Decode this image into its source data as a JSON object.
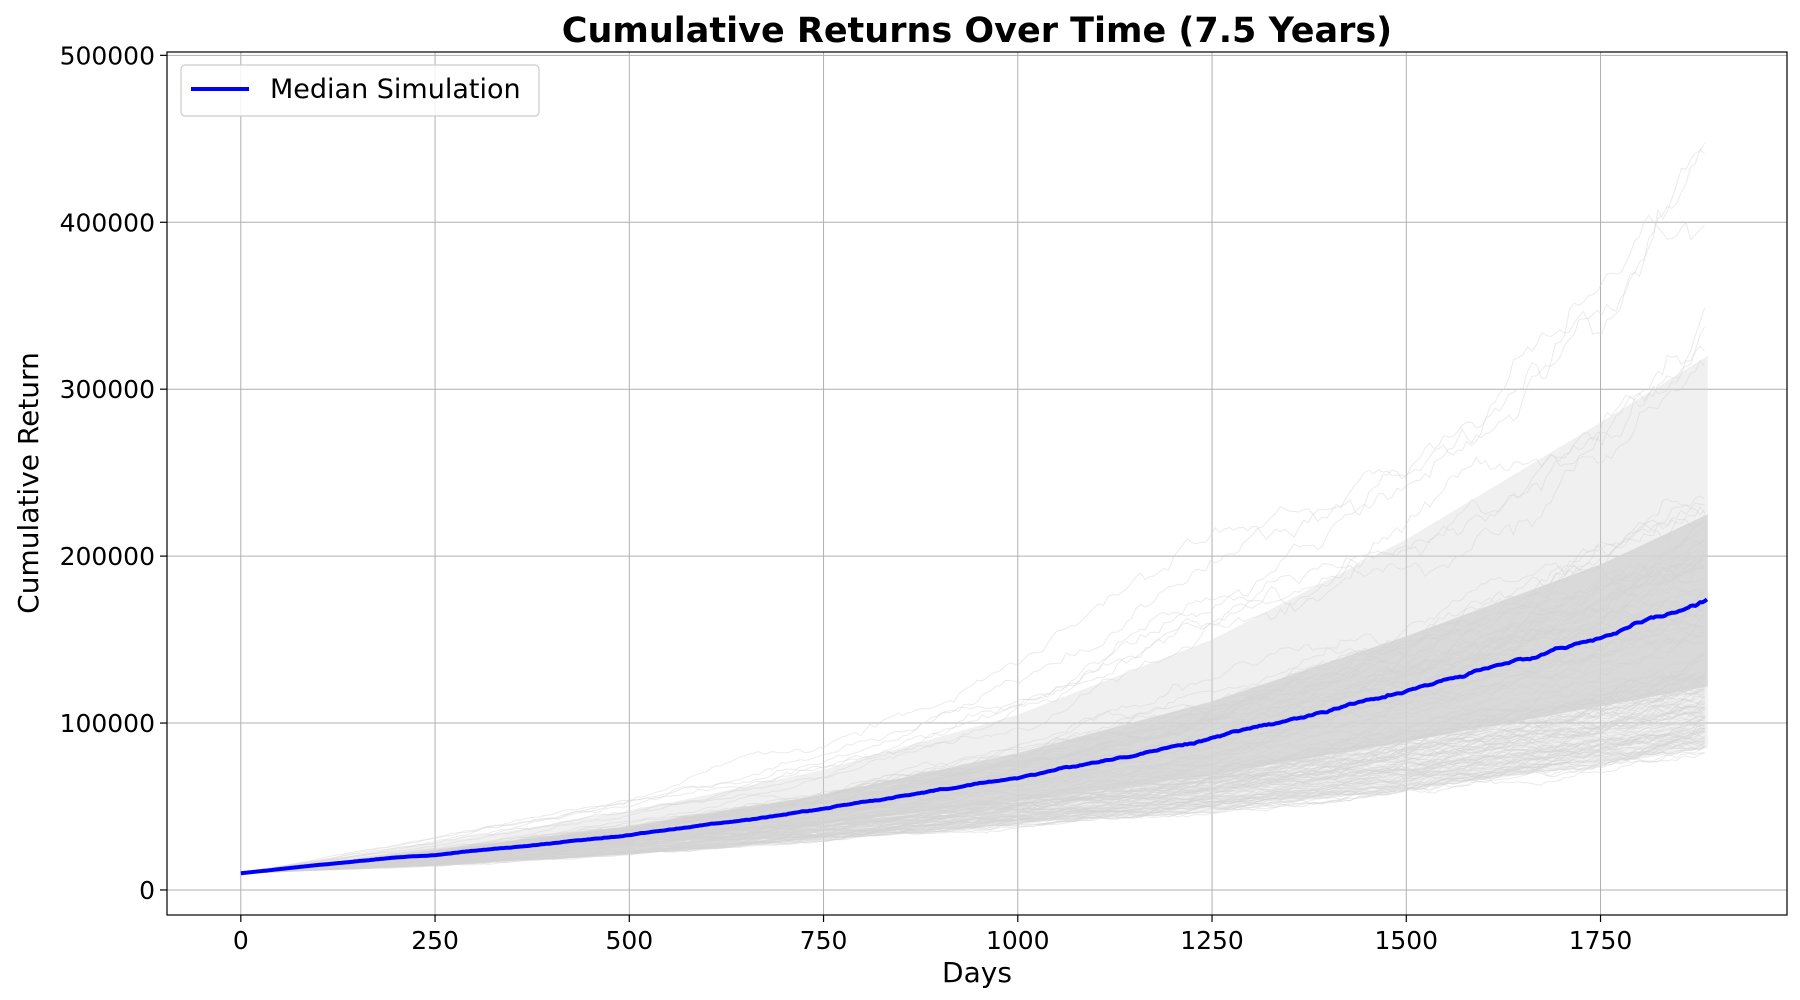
{
  "chart_data": {
    "type": "line",
    "title": "Cumulative Returns Over Time (7.5 Years)",
    "xlabel": "Days",
    "ylabel": "Cumulative Return",
    "xlim": [
      -95,
      1990
    ],
    "ylim": [
      -15000,
      502000
    ],
    "x_ticks": [
      0,
      250,
      500,
      750,
      1000,
      1250,
      1500,
      1750
    ],
    "y_ticks": [
      0,
      100000,
      200000,
      300000,
      400000,
      500000
    ],
    "grid": true,
    "legend_position": "top-left",
    "colors": {
      "median": "#0000ff",
      "simulations": "#d3d3d3"
    },
    "series": [
      {
        "name": "Median Simulation",
        "x": [
          0,
          100,
          200,
          250,
          300,
          400,
          500,
          600,
          700,
          750,
          800,
          900,
          1000,
          1100,
          1200,
          1250,
          1300,
          1400,
          1500,
          1600,
          1700,
          1750,
          1800,
          1888
        ],
        "y": [
          10000,
          15000,
          19500,
          21000,
          23500,
          28000,
          33000,
          39000,
          45500,
          49000,
          52500,
          59500,
          67500,
          76500,
          86000,
          91000,
          96500,
          107500,
          119000,
          131000,
          145000,
          152000,
          159000,
          173000
        ]
      }
    ],
    "simulation_envelope": {
      "x": [
        0,
        250,
        500,
        750,
        1000,
        1250,
        1500,
        1750,
        1888
      ],
      "p5": [
        10000,
        15000,
        22000,
        31000,
        40000,
        48000,
        60000,
        75000,
        85000
      ],
      "p25": [
        10000,
        18500,
        28500,
        40000,
        53000,
        69000,
        89000,
        110000,
        122000
      ],
      "p75": [
        10000,
        24000,
        38000,
        57000,
        82000,
        113000,
        152000,
        195000,
        225000
      ],
      "p95": [
        10000,
        28000,
        47000,
        72000,
        105000,
        150000,
        210000,
        280000,
        320000
      ],
      "max": [
        10000,
        32000,
        57000,
        88000,
        138000,
        215000,
        280000,
        380000,
        470000
      ]
    }
  }
}
